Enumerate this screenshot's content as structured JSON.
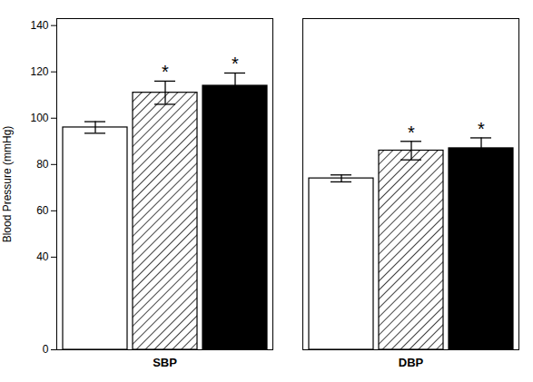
{
  "chart_data": {
    "type": "bar",
    "categories": [
      "SBP",
      "DBP"
    ],
    "series": [
      {
        "color": "white",
        "values": [
          96,
          74
        ],
        "errors": [
          2.5,
          1.5
        ],
        "annotations": [
          null,
          null
        ]
      },
      {
        "color": "white",
        "values": [
          111,
          86
        ],
        "errors": [
          5.0,
          4.0
        ],
        "annotations": [
          "*",
          "*"
        ]
      },
      {
        "color": "black",
        "values": [
          114,
          87
        ],
        "errors": [
          5.5,
          4.5
        ],
        "annotations": [
          "*",
          "*"
        ]
      }
    ],
    "ylabel": "Blood Pressure (mmHg)",
    "ylim": [
      0,
      143
    ],
    "yticks": [
      0,
      40,
      60,
      80,
      100,
      120,
      140
    ],
    "grid": false
  }
}
